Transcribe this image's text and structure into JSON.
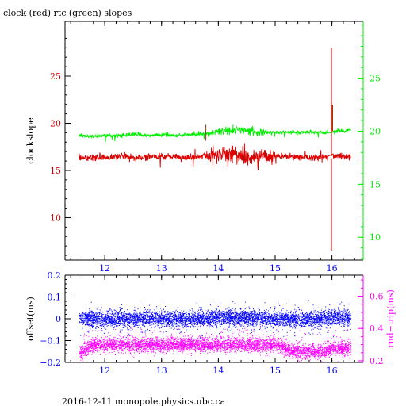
{
  "title": "clock (red) rtc (green) slopes",
  "footer": "2016-12-11 monopole.physics.ubc.ca",
  "colors": {
    "clock": "#dd0000",
    "rtc": "#00ee00",
    "axis": "#000000",
    "offset": "#0000ff",
    "rndtrip": "#ff00ff",
    "marker": "#993300"
  },
  "chart_data": [
    {
      "type": "line",
      "name": "top",
      "xlabel": "",
      "ylabel_left": "clockslope",
      "ylabel_right": "",
      "xlim": [
        11.3,
        16.55
      ],
      "ylim_left": [
        5.5,
        30.8
      ],
      "ylim_right": [
        7.85,
        30.35
      ],
      "xticks": [
        12,
        13,
        14,
        15,
        16
      ],
      "xtick_labels": [
        "12",
        "13",
        "14",
        "15",
        "16"
      ],
      "yticks_left": [
        10,
        15,
        20,
        25
      ],
      "ytick_labels_left": [
        "10",
        "15",
        "20",
        "25"
      ],
      "yticks_right": [
        10,
        15,
        20,
        25
      ],
      "ytick_labels_right": [
        "10",
        "15",
        "20",
        "25"
      ],
      "series": [
        {
          "axis": "left",
          "x": [
            11.55,
            11.8,
            12.05,
            12.3,
            12.55,
            12.8,
            13.05,
            13.3,
            13.55,
            13.8,
            14.05,
            14.3,
            14.55,
            14.8,
            15.05,
            15.3,
            15.55,
            15.8,
            15.95,
            16.0,
            16.05,
            16.3
          ],
          "y": [
            16.3,
            16.4,
            16.4,
            16.5,
            16.3,
            16.4,
            16.5,
            16.4,
            16.4,
            16.5,
            16.6,
            16.7,
            16.4,
            16.6,
            16.5,
            16.5,
            16.4,
            16.4,
            28,
            6.5,
            16.5,
            16.5
          ]
        },
        {
          "axis": "right",
          "x": [
            11.55,
            11.8,
            12.05,
            12.3,
            12.55,
            12.8,
            13.05,
            13.3,
            13.55,
            13.8,
            14.05,
            14.3,
            14.55,
            14.8,
            15.05,
            15.3,
            15.55,
            15.8,
            15.95,
            16.0,
            16.05,
            16.3
          ],
          "y": [
            19.6,
            19.5,
            19.6,
            19.6,
            19.7,
            19.6,
            19.7,
            19.6,
            19.7,
            19.8,
            20.0,
            20.1,
            20.0,
            19.9,
            19.9,
            19.9,
            19.9,
            19.9,
            19.9,
            22.5,
            20.0,
            20.1
          ]
        }
      ]
    },
    {
      "type": "scatter",
      "name": "bottom",
      "xlabel": "",
      "ylabel_left": "offset(ms)",
      "ylabel_right": "rnd−trip(ms)",
      "xlim": [
        11.3,
        16.55
      ],
      "ylim_left": [
        -0.2,
        0.2
      ],
      "ylim_right": [
        0.19,
        0.73
      ],
      "xticks": [
        12,
        13,
        14,
        15,
        16
      ],
      "xtick_labels": [
        "12",
        "13",
        "14",
        "15",
        "16"
      ],
      "yticks_left": [
        -0.2,
        -0.1,
        0,
        0.1,
        0.2
      ],
      "ytick_labels_left": [
        "−0.2",
        "−0.1",
        "0",
        "0.1",
        "0.2"
      ],
      "yticks_right": [
        0.2,
        0.4,
        0.6
      ],
      "ytick_labels_right": [
        "0.2",
        "0.4",
        "0.6"
      ],
      "series": [
        {
          "axis": "left",
          "x": [
            11.55,
            11.8,
            12.05,
            12.3,
            12.55,
            12.8,
            13.05,
            13.3,
            13.55,
            13.8,
            14.05,
            14.3,
            14.55,
            14.8,
            15.05,
            15.3,
            15.55,
            15.8,
            16.05,
            16.3
          ],
          "y": [
            0.005,
            0.0,
            0.0,
            0.0,
            0.0,
            0.0,
            0.0,
            0.0,
            0.0,
            0.0,
            0.005,
            0.005,
            0.005,
            0.0,
            0.0,
            0.0,
            0.0,
            0.0,
            0.01,
            0.0
          ]
        },
        {
          "axis": "right",
          "x": [
            11.55,
            11.8,
            12.05,
            12.3,
            12.55,
            12.8,
            13.05,
            13.3,
            13.55,
            13.8,
            14.05,
            14.3,
            14.55,
            14.8,
            15.05,
            15.3,
            15.55,
            15.8,
            16.05,
            16.3
          ],
          "y": [
            0.25,
            0.3,
            0.3,
            0.3,
            0.3,
            0.3,
            0.3,
            0.3,
            0.3,
            0.3,
            0.3,
            0.3,
            0.3,
            0.3,
            0.3,
            0.26,
            0.26,
            0.26,
            0.28,
            0.28
          ]
        }
      ]
    }
  ]
}
